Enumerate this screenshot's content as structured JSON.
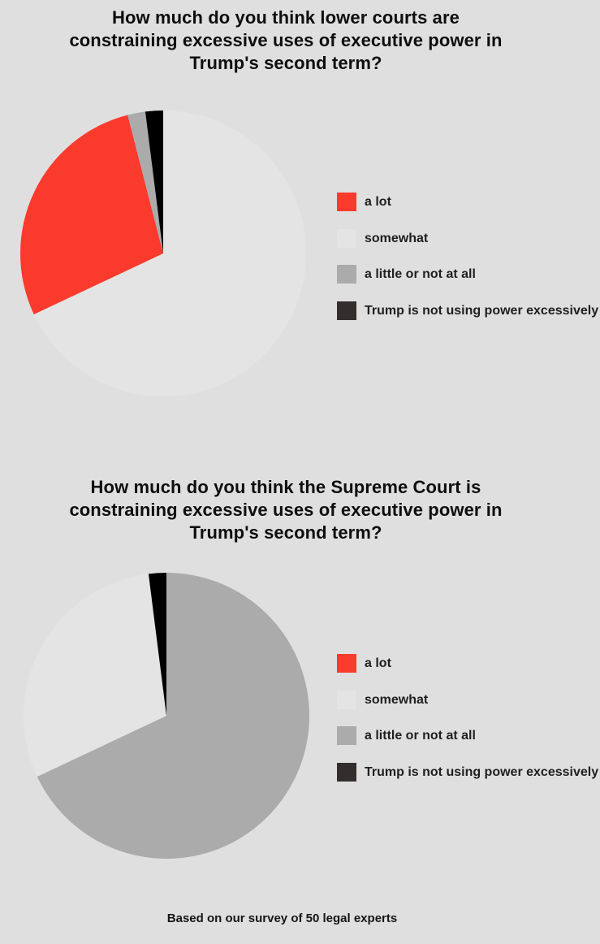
{
  "page": {
    "background_color": "#dfdfdf",
    "footer_note": "Based on our survey of 50 legal experts"
  },
  "chart_data": [
    {
      "type": "pie",
      "title": "How much do you think lower courts are constraining excessive uses of executive power in Trump's second term?",
      "title_lines": [
        "How much do you think lower courts are",
        "constraining excessive uses of executive power in",
        "Trump's second term?"
      ],
      "labels": [
        "a lot",
        "somewhat",
        "a little or not at all",
        "Trump is not using power excessively"
      ],
      "values": [
        14,
        34,
        1,
        1
      ],
      "percents": [
        28,
        68,
        2,
        2
      ],
      "total_respondents": 50,
      "colors": [
        "#f93a2d",
        "#e4e4e4",
        "#ababab",
        "#000000"
      ],
      "legend_swatch_colors": [
        "#f93a2d",
        "#e4e4e4",
        "#ababab",
        "#332e2e"
      ],
      "start": "top",
      "direction": "clockwise",
      "sort": "descending",
      "legend_position": "right"
    },
    {
      "type": "pie",
      "title": "How much do you think the Supreme Court is constraining excessive uses of executive power in Trump's second term?",
      "title_lines": [
        "How much do you think the Supreme Court is",
        "constraining excessive uses of executive power in",
        "Trump's second term?"
      ],
      "labels": [
        "a lot",
        "somewhat",
        "a little or not at all",
        "Trump is not using power excessively"
      ],
      "values": [
        0,
        15,
        34,
        1
      ],
      "percents": [
        0,
        30,
        68,
        2
      ],
      "total_respondents": 50,
      "colors": [
        "#f93a2d",
        "#e4e4e4",
        "#ababab",
        "#000000"
      ],
      "legend_swatch_colors": [
        "#f93a2d",
        "#e4e4e4",
        "#ababab",
        "#332e2e"
      ],
      "start": "top",
      "direction": "clockwise",
      "sort": "descending",
      "legend_position": "right"
    }
  ]
}
